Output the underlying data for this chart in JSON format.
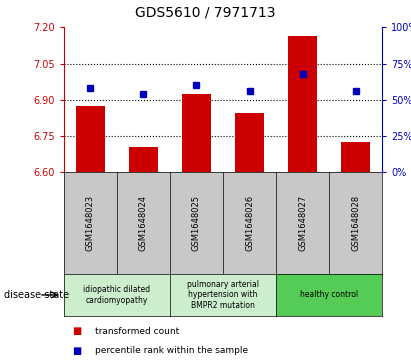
{
  "title": "GDS5610 / 7971713",
  "samples": [
    "GSM1648023",
    "GSM1648024",
    "GSM1648025",
    "GSM1648026",
    "GSM1648027",
    "GSM1648028"
  ],
  "transformed_counts": [
    6.875,
    6.705,
    6.925,
    6.845,
    7.165,
    6.725
  ],
  "percentile_ranks": [
    58,
    54,
    60,
    56,
    68,
    56
  ],
  "ylim_left": [
    6.6,
    7.2
  ],
  "ylim_right": [
    0,
    100
  ],
  "yticks_left": [
    6.6,
    6.75,
    6.9,
    7.05,
    7.2
  ],
  "yticks_right": [
    0,
    25,
    50,
    75,
    100
  ],
  "hlines": [
    6.75,
    6.9,
    7.05
  ],
  "bar_color": "#cc0000",
  "dot_color": "#0000bb",
  "bar_bottom": 6.6,
  "disease_groups": [
    {
      "label": "idiopathic dilated\ncardiomyopathy",
      "indices": [
        0,
        1
      ],
      "color": "#cceecc"
    },
    {
      "label": "pulmonary arterial\nhypertension with\nBMPR2 mutation",
      "indices": [
        2,
        3
      ],
      "color": "#cceecc"
    },
    {
      "label": "healthy control",
      "indices": [
        4,
        5
      ],
      "color": "#55cc55"
    }
  ],
  "legend_red_label": "transformed count",
  "legend_blue_label": "percentile rank within the sample",
  "disease_state_label": "disease state",
  "left_axis_color": "#cc0000",
  "right_axis_color": "#0000bb",
  "plot_bg_color": "#d8d8d8",
  "sample_box_color": "#c8c8c8"
}
